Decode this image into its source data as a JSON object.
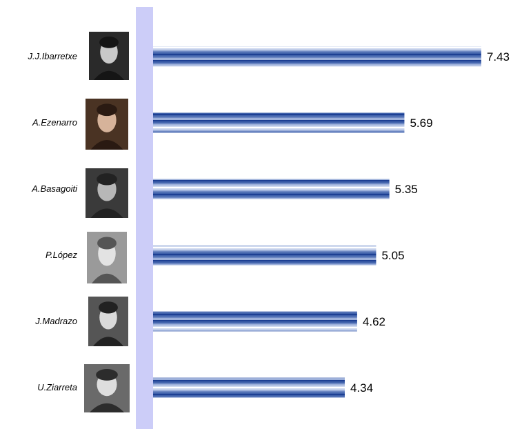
{
  "chart_data": {
    "type": "bar",
    "orientation": "horizontal",
    "categories": [
      "J.J.Ibarretxe",
      "A.Ezenarro",
      "A.Basagoiti",
      "P.López",
      "J.Madrazo",
      "U.Ziarreta"
    ],
    "values": [
      7.43,
      5.69,
      5.35,
      5.05,
      4.62,
      4.34
    ],
    "value_labels": [
      "7.43",
      "5.69",
      "5.35",
      "5.05",
      "4.62",
      "4.34"
    ],
    "xlim": [
      0,
      7.5
    ],
    "grid": false,
    "legend": "none",
    "colors": {
      "axis_band": "#cccdf8",
      "bar_dark": "#1d3f93",
      "bar_light": "#ffffff"
    },
    "icons": [
      "portrait-photo",
      "portrait-photo",
      "portrait-photo",
      "portrait-photo",
      "portrait-photo",
      "portrait-photo"
    ]
  }
}
